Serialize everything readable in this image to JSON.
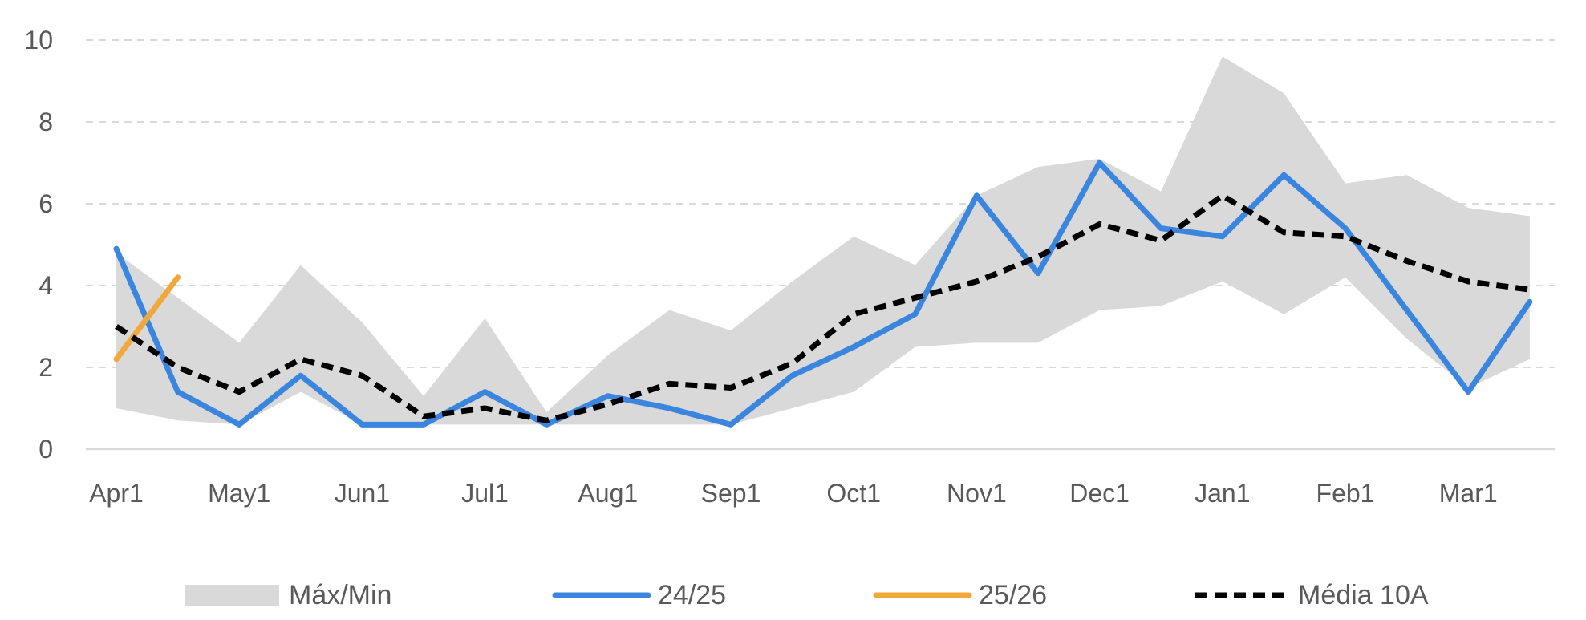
{
  "chart_data": {
    "type": "line",
    "title": "",
    "xlabel": "",
    "ylabel": "",
    "ylim": [
      0,
      10
    ],
    "yticks": [
      0,
      2,
      4,
      6,
      8,
      10
    ],
    "grid": true,
    "legend_position": "bottom",
    "x_count": 25,
    "x_ticks": [
      {
        "i": 0,
        "label": "Apr1"
      },
      {
        "i": 2,
        "label": "May1"
      },
      {
        "i": 4,
        "label": "Jun1"
      },
      {
        "i": 6,
        "label": "Jul1"
      },
      {
        "i": 8,
        "label": "Aug1"
      },
      {
        "i": 10,
        "label": "Sep1"
      },
      {
        "i": 12,
        "label": "Oct1"
      },
      {
        "i": 14,
        "label": "Nov1"
      },
      {
        "i": 16,
        "label": "Dec1"
      },
      {
        "i": 18,
        "label": "Jan1"
      },
      {
        "i": 20,
        "label": "Feb1"
      },
      {
        "i": 22,
        "label": "Mar1"
      }
    ],
    "band": {
      "name": "Máx/Min",
      "color": "#d9d9d9",
      "max": [
        4.8,
        3.7,
        2.6,
        4.5,
        3.1,
        1.3,
        3.2,
        0.9,
        2.3,
        3.4,
        2.9,
        4.1,
        5.2,
        4.5,
        6.2,
        6.9,
        7.1,
        6.3,
        9.6,
        8.7,
        6.5,
        6.7,
        5.9,
        5.7
      ],
      "min": [
        1.0,
        0.7,
        0.6,
        1.4,
        0.6,
        0.6,
        0.6,
        0.6,
        0.6,
        0.6,
        0.6,
        1.0,
        1.4,
        2.5,
        2.6,
        2.6,
        3.4,
        3.5,
        4.1,
        3.3,
        4.2,
        2.7,
        1.5,
        2.2
      ]
    },
    "series": [
      {
        "name": "24/25",
        "color": "#3a85de",
        "dash": false,
        "values": [
          4.9,
          1.4,
          0.6,
          1.8,
          0.6,
          0.6,
          1.4,
          0.6,
          1.3,
          1.0,
          0.6,
          1.8,
          2.5,
          3.3,
          6.2,
          4.3,
          7.0,
          5.4,
          5.2,
          6.7,
          5.4,
          3.4,
          1.4,
          3.6
        ]
      },
      {
        "name": "25/26",
        "color": "#f0a73c",
        "dash": false,
        "values": [
          2.2,
          4.2
        ]
      },
      {
        "name": "Média 10A",
        "color": "#000000",
        "dash": true,
        "values": [
          3.0,
          2.0,
          1.4,
          2.2,
          1.8,
          0.8,
          1.0,
          0.7,
          1.1,
          1.6,
          1.5,
          2.1,
          3.3,
          3.7,
          4.1,
          4.7,
          5.5,
          5.1,
          6.2,
          5.3,
          5.2,
          4.6,
          4.1,
          3.9
        ]
      }
    ]
  }
}
